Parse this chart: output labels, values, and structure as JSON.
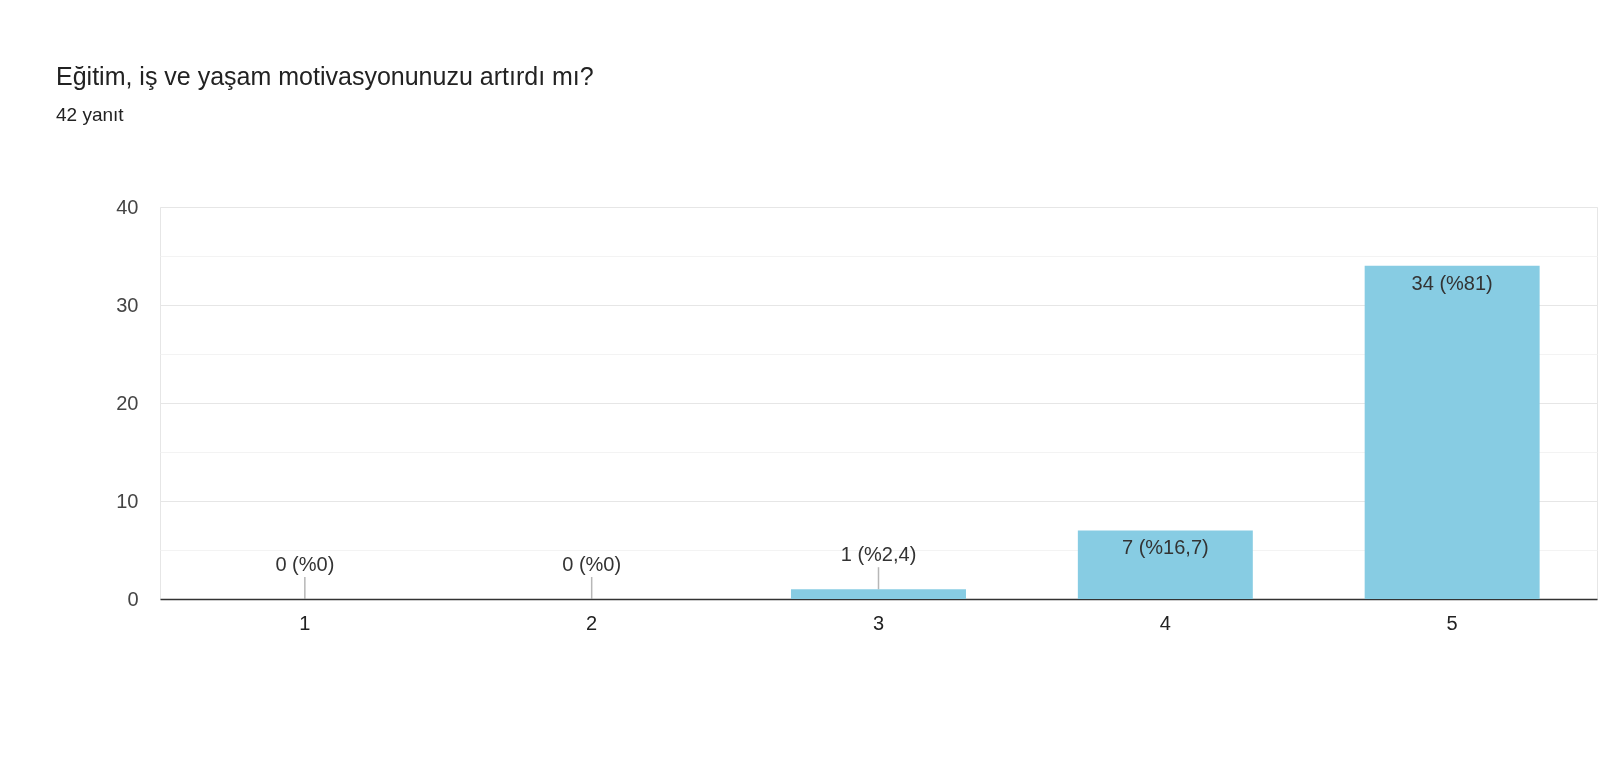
{
  "chart_data": {
    "type": "bar",
    "title": "Eğitim, iş ve yaşam motivasyonunuzu artırdı mı?",
    "subtitle": "42 yanıt",
    "categories": [
      "1",
      "2",
      "3",
      "4",
      "5"
    ],
    "values": [
      0,
      0,
      1,
      7,
      34
    ],
    "value_labels": [
      "0 (%0)",
      "0 (%0)",
      "1 (%2,4)",
      "7 (%16,7)",
      "34 (%81)"
    ],
    "color": "#87cce3",
    "ylim": [
      0,
      40
    ],
    "yticks": [
      0,
      {
        "value": 5,
        "label": null
      },
      10,
      {
        "value": 15,
        "label": null
      },
      20,
      {
        "value": 25,
        "label": null
      },
      30,
      {
        "value": 35,
        "label": null
      },
      40
    ],
    "grid": true
  }
}
